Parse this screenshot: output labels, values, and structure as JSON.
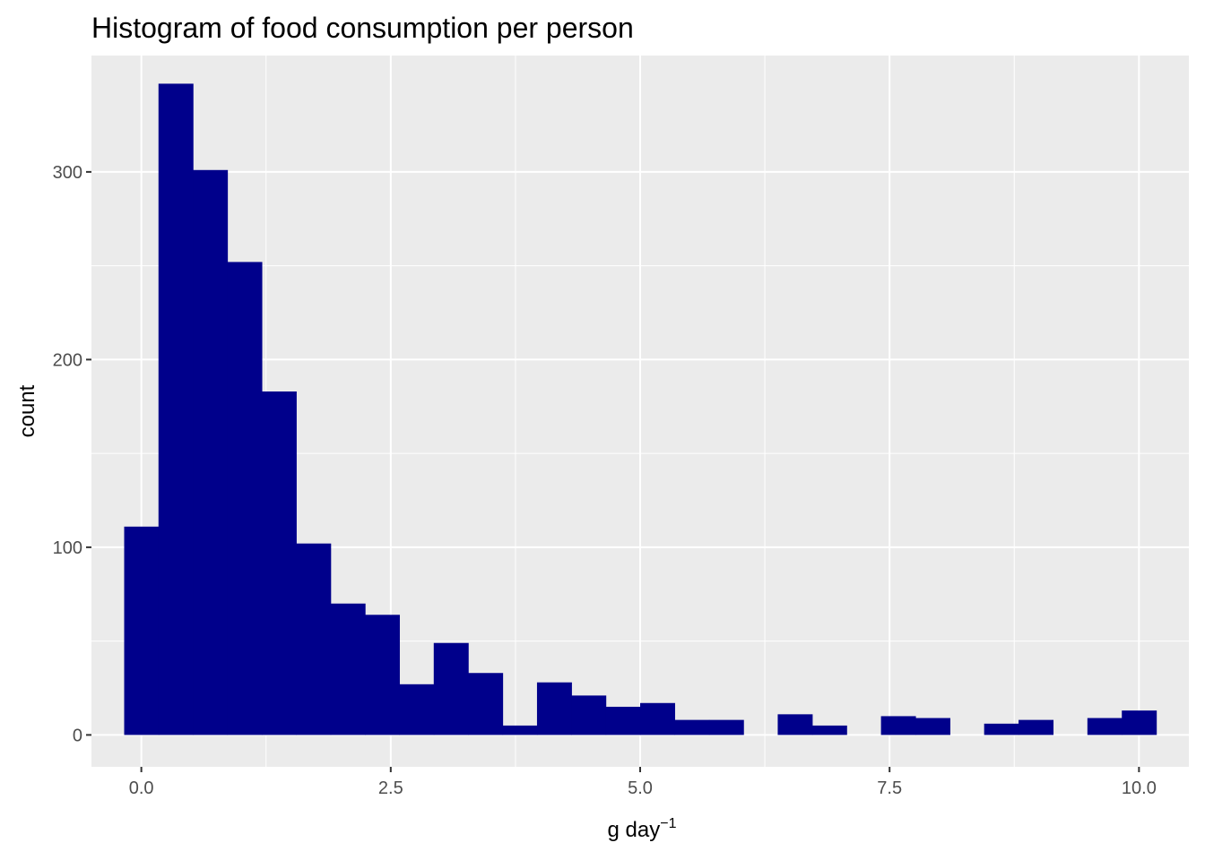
{
  "chart_data": {
    "type": "bar",
    "title": "Histogram of food consumption per person",
    "xlabel": "g day",
    "xlabel_superscript": "−1",
    "ylabel": "count",
    "xlim": [
      -0.5,
      10.5
    ],
    "ylim": [
      -17,
      362
    ],
    "x_ticks": [
      {
        "value": 0,
        "label": "0.0"
      },
      {
        "value": 2.5,
        "label": "2.5"
      },
      {
        "value": 5,
        "label": "5.0"
      },
      {
        "value": 7.5,
        "label": "7.5"
      },
      {
        "value": 10,
        "label": "10.0"
      }
    ],
    "y_ticks": [
      {
        "value": 0,
        "label": "0"
      },
      {
        "value": 100,
        "label": "100"
      },
      {
        "value": 200,
        "label": "200"
      },
      {
        "value": 300,
        "label": "300"
      }
    ],
    "bin_width": 0.3448,
    "bins": [
      {
        "x_start": -0.172,
        "count": 111
      },
      {
        "x_start": 0.172,
        "count": 347
      },
      {
        "x_start": 0.517,
        "count": 301
      },
      {
        "x_start": 0.862,
        "count": 252
      },
      {
        "x_start": 1.207,
        "count": 183
      },
      {
        "x_start": 1.552,
        "count": 102
      },
      {
        "x_start": 1.897,
        "count": 70
      },
      {
        "x_start": 2.241,
        "count": 64
      },
      {
        "x_start": 2.586,
        "count": 27
      },
      {
        "x_start": 2.931,
        "count": 49
      },
      {
        "x_start": 3.276,
        "count": 33
      },
      {
        "x_start": 3.621,
        "count": 5
      },
      {
        "x_start": 3.966,
        "count": 28
      },
      {
        "x_start": 4.31,
        "count": 21
      },
      {
        "x_start": 4.655,
        "count": 15
      },
      {
        "x_start": 5.0,
        "count": 17
      },
      {
        "x_start": 5.345,
        "count": 8
      },
      {
        "x_start": 5.69,
        "count": 8
      },
      {
        "x_start": 6.034,
        "count": 0
      },
      {
        "x_start": 6.379,
        "count": 11
      },
      {
        "x_start": 6.724,
        "count": 5
      },
      {
        "x_start": 7.069,
        "count": 0
      },
      {
        "x_start": 7.414,
        "count": 10
      },
      {
        "x_start": 7.759,
        "count": 9
      },
      {
        "x_start": 8.103,
        "count": 0
      },
      {
        "x_start": 8.448,
        "count": 6
      },
      {
        "x_start": 8.793,
        "count": 8
      },
      {
        "x_start": 9.138,
        "count": 0
      },
      {
        "x_start": 9.483,
        "count": 9
      },
      {
        "x_start": 9.828,
        "count": 13
      }
    ],
    "fill_color": "#00008B",
    "panel_background": "#EBEBEB",
    "grid_color": "#FFFFFF",
    "grid": true,
    "legend": "none"
  }
}
